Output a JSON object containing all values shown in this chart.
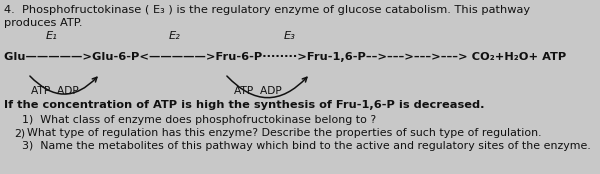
{
  "title_line1": "4.  Phosphofructokinase ( E₃ ) is the regulatory enzyme of glucose catabolism. This pathway",
  "title_line2": "produces ATP.",
  "enzyme_label_1": "E₁",
  "enzyme_label_2": "E₂",
  "enzyme_label_3": "E₃",
  "pathway_line": "Glu—————>Glu-6-P<—————>Fru-6-P········>Fru-1,6-P––>–––>–––>–––> CO₂+H₂O+ ATP",
  "atp_adp_left": "ATP  ADP",
  "atp_adp_right": "ATP  ADP",
  "bold_line": "If the concentration of ATP is high the synthesis of Fru-1,6-P is decreased.",
  "q1": "1)  What class of enzyme does phosphofructokinase belong to ?",
  "q2_num": "2)",
  "q2_text": "What type of regulation has this enzyme? Describe the properties of such type of regulation.",
  "q3": "3)  Name the metabolites of this pathway which bind to the active and regulatory sites of the enzyme.",
  "bg_color": "#c8c8c8",
  "text_color": "#111111",
  "fontsize": 8.2
}
